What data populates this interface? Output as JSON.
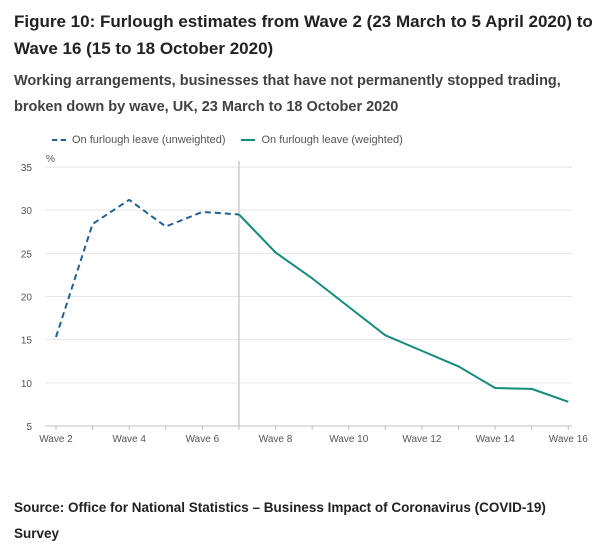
{
  "header": {
    "title": "Figure 10: Furlough estimates from Wave 2 (23 March to 5 April 2020) to Wave 16 (15 to 18 October 2020)",
    "subtitle": "Working arrangements, businesses that have not permanently stopped trading, broken down by wave, UK, 23 March to 18 October 2020"
  },
  "legend": [
    {
      "label": "On furlough leave (unweighted)",
      "style": "dashed",
      "color": "#206095"
    },
    {
      "label": "On furlough leave (weighted)",
      "style": "solid",
      "color": "#118c7b"
    }
  ],
  "chart_data": {
    "type": "line",
    "title": "",
    "xlabel": "",
    "ylabel": "%",
    "ylim": [
      5,
      35
    ],
    "yticks": [
      5,
      10,
      15,
      20,
      25,
      30,
      35
    ],
    "grid": true,
    "legend_position": "top-left",
    "x": [
      "Wave 2",
      "Wave 3",
      "Wave 4",
      "Wave 5",
      "Wave 6",
      "Wave 7",
      "Wave 8",
      "Wave 9",
      "Wave 10",
      "Wave 11",
      "Wave 12",
      "Wave 13",
      "Wave 14",
      "Wave 15",
      "Wave 16"
    ],
    "x_tick_labels": [
      "Wave 2",
      "Wave 4",
      "Wave 6",
      "Wave 8",
      "Wave 10",
      "Wave 12",
      "Wave 14",
      "Wave 16"
    ],
    "series": [
      {
        "name": "On furlough leave (unweighted)",
        "style": "dashed",
        "color": "#206095",
        "values": [
          15.3,
          28.4,
          31.2,
          28.1,
          29.8,
          29.5,
          null,
          null,
          null,
          null,
          null,
          null,
          null,
          null,
          null
        ]
      },
      {
        "name": "On furlough leave (weighted)",
        "style": "solid",
        "color": "#118c7b",
        "values": [
          null,
          null,
          null,
          null,
          null,
          29.5,
          25.1,
          22.1,
          18.8,
          15.5,
          13.7,
          11.9,
          9.4,
          9.3,
          7.8
        ]
      }
    ],
    "divider_after": "Wave 7"
  },
  "footer": {
    "source": "Source: Office for National Statistics – Business Impact of Coronavirus (COVID-19) Survey"
  }
}
